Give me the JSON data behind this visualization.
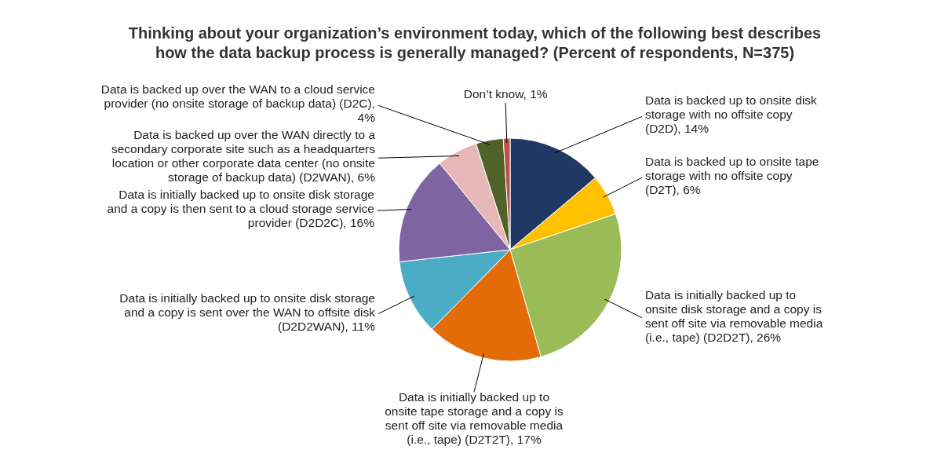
{
  "chart_data": {
    "type": "pie",
    "title": "Thinking about your organization’s environment today, which of the following best describes how the data backup process is generally managed? (Percent of respondents, N=375)",
    "categories": [
      "Data is backed up to onsite disk storage with no offsite copy (D2D), 14%",
      "Data is backed up to onsite tape storage with no offsite copy (D2T), 6%",
      "Data is initially backed up to onsite disk storage and a copy is sent off site via removable media (i.e., tape) (D2D2T), 26%",
      "Data is initially backed up to onsite tape storage and a copy is sent off site via removable media (i.e., tape) (D2T2T), 17%",
      "Data is initially backed up to onsite disk storage and a copy is sent over the WAN to offsite disk (D2D2WAN), 11%",
      "Data is initially backed up to onsite disk storage and a copy is then sent to a cloud storage service provider (D2D2C), 16%",
      "Data is backed up over the WAN directly to a secondary corporate site such as a headquarters location or other corporate data center (no onsite storage of backup data) (D2WAN), 6%",
      "Data is backed up over the WAN to a cloud service provider (no onsite storage of backup data) (D2C), 4%",
      "Don’t know, 1%"
    ],
    "values": [
      14,
      6,
      26,
      17,
      11,
      16,
      6,
      4,
      1
    ],
    "colors": [
      "#1f3864",
      "#ffc000",
      "#9bbb59",
      "#e36c09",
      "#4bacc6",
      "#8064a2",
      "#e6b9b8",
      "#4f6228",
      "#c0504d"
    ]
  }
}
